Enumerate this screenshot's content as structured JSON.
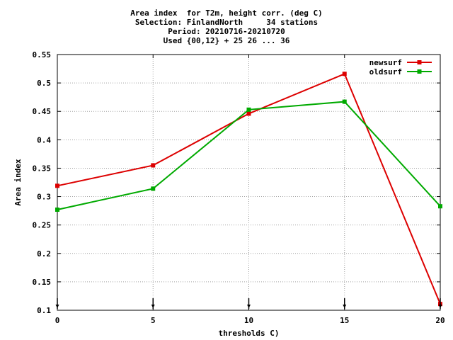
{
  "chart_data": {
    "type": "line",
    "title_lines": [
      "Area index  for T2m, height corr. (deg C)",
      "Selection: FinlandNorth     34 stations",
      "Period: 20210716-20210720",
      "Used {00,12} + 25 26 ... 36"
    ],
    "xlabel": "thresholds C)",
    "ylabel": "Area index",
    "x": [
      0,
      5,
      10,
      15,
      20
    ],
    "xlim": [
      0,
      20
    ],
    "ylim": [
      0.1,
      0.55
    ],
    "xticks": [
      0,
      5,
      10,
      15,
      20
    ],
    "yticks": [
      0.1,
      0.15,
      0.2,
      0.25,
      0.3,
      0.35,
      0.4,
      0.45,
      0.5,
      0.55
    ],
    "grid": true,
    "legend_position": "top-right",
    "series": [
      {
        "name": "newsurf",
        "color": "#dd0000",
        "values": [
          0.319,
          0.355,
          0.446,
          0.516,
          0.111
        ]
      },
      {
        "name": "oldsurf",
        "color": "#00aa00",
        "values": [
          0.277,
          0.314,
          0.453,
          0.467,
          0.283
        ]
      }
    ]
  }
}
